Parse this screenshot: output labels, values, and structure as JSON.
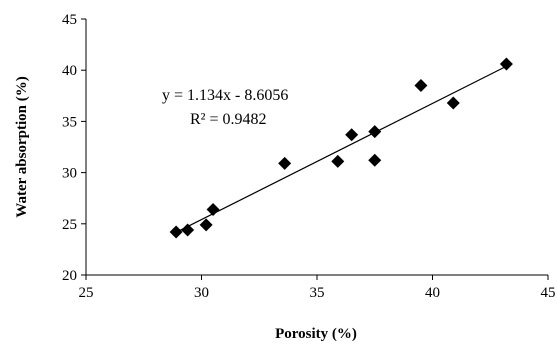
{
  "chart_data": {
    "type": "scatter",
    "title": "",
    "xlabel": "Porosity (%)",
    "ylabel": "Water absorption (%)",
    "xlim": [
      25,
      45
    ],
    "ylim": [
      20,
      45
    ],
    "xticks": [
      25,
      30,
      35,
      40,
      45
    ],
    "yticks": [
      20,
      25,
      30,
      35,
      40,
      45
    ],
    "xtick_labels": [
      "25",
      "30",
      "35",
      "40",
      "45"
    ],
    "ytick_labels": [
      "20",
      "25",
      "30",
      "35",
      "40",
      "45"
    ],
    "grid": false,
    "legend": "none",
    "marker": "diamond",
    "marker_color": "#000000",
    "trendline_color": "#000000",
    "series": [
      {
        "x": [
          28.9,
          29.4,
          30.2,
          30.5,
          33.6,
          35.9,
          36.5,
          37.5,
          37.5,
          39.5,
          40.9,
          43.2
        ],
        "y": [
          24.2,
          24.4,
          24.9,
          26.4,
          30.9,
          31.1,
          33.7,
          34.0,
          31.2,
          38.5,
          36.8,
          40.6
        ]
      }
    ],
    "trendline": {
      "slope": 1.134,
      "intercept": -8.6056,
      "x_range": [
        28.9,
        43.2
      ],
      "equation": "y = 1.134x - 8.6056",
      "r_squared": "R² = 0.9482"
    }
  }
}
